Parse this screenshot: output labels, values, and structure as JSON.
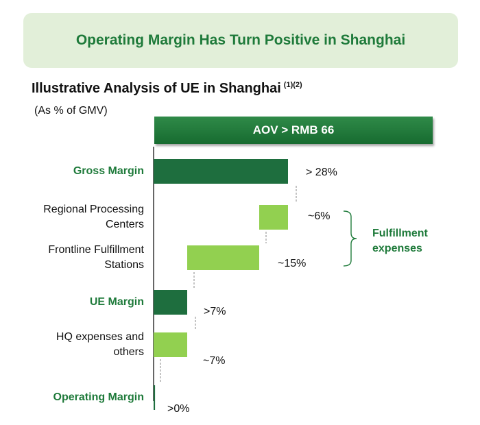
{
  "banner": {
    "title": "Operating Margin Has Turn Positive in Shanghai"
  },
  "heading": {
    "title": "Illustrative Analysis of UE in Shanghai",
    "footnote": "(1)(2)"
  },
  "unit_note": "(As % of GMV)",
  "aov_banner": "AOV > RMB 66",
  "group_bracket": {
    "label_line1": "Fulfillment",
    "label_line2": "expenses"
  },
  "colors": {
    "dark_green": "#1e6e3e",
    "light_green": "#92d050",
    "title_green": "#1e7a3a",
    "banner_bg": "#e2efd9"
  },
  "chart_data": {
    "type": "bar",
    "subtype": "waterfall",
    "orientation": "horizontal",
    "categories": [
      "Gross Margin",
      "Regional Processing Centers",
      "Frontline Fulfillment Stations",
      "UE Margin",
      "HQ expenses and others",
      "Operating Margin"
    ],
    "label_lines": [
      [
        "Gross Margin"
      ],
      [
        "Regional Processing",
        "Centers"
      ],
      [
        "Frontline Fulfillment",
        "Stations"
      ],
      [
        "UE Margin"
      ],
      [
        "HQ expenses and",
        "others"
      ],
      [
        "Operating Margin"
      ]
    ],
    "bar_kind": [
      "total",
      "decrease",
      "decrease",
      "total",
      "decrease",
      "total"
    ],
    "values": [
      28,
      6,
      15,
      7,
      7,
      0.3
    ],
    "starts": [
      0,
      22,
      7,
      0,
      0,
      0
    ],
    "ends": [
      28,
      28,
      22,
      7,
      7,
      0.3
    ],
    "value_labels": [
      "> 28%",
      "~6%",
      "~15%",
      ">7%",
      "~7%",
      ">0%"
    ],
    "highlighted": [
      true,
      false,
      false,
      true,
      false,
      true
    ],
    "xlim": [
      0,
      28
    ]
  }
}
